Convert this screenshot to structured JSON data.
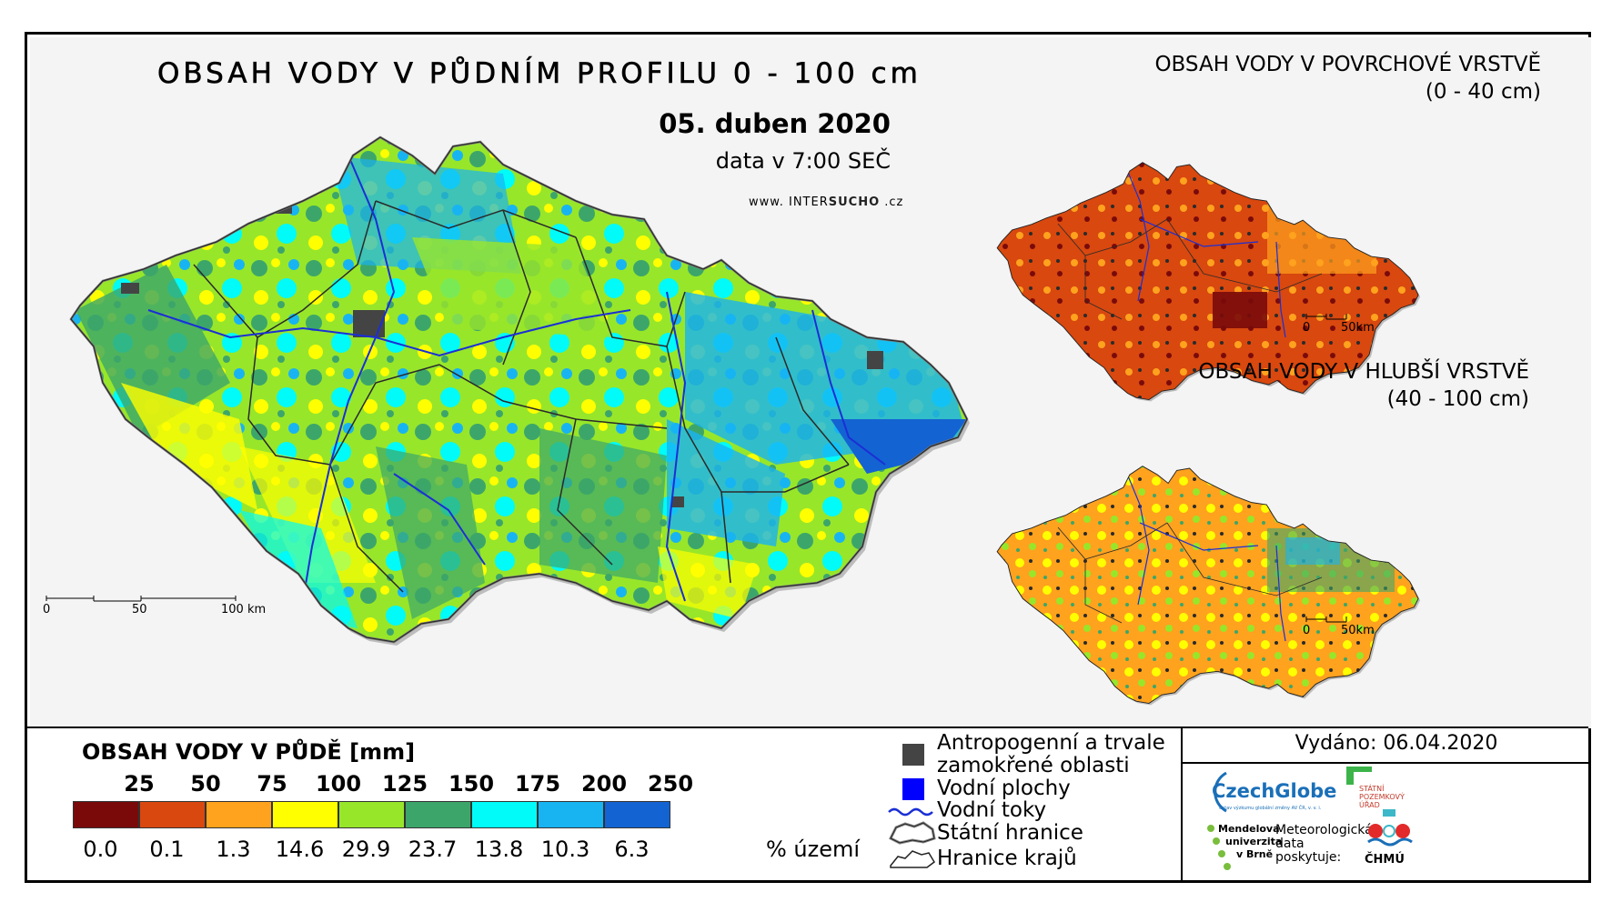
{
  "main_map": {
    "title": "OBSAH VODY V PŮDNÍM PROFILU 0 - 100 cm",
    "date": "05. duben 2020",
    "time_note": "data v 7:00 SEČ",
    "website_prefix": "www.",
    "website_brand_a": "INTER",
    "website_brand_b": "SUCHO",
    "website_suffix": ".cz",
    "scale": {
      "labels": [
        "0",
        "50",
        "100 km"
      ]
    }
  },
  "inset_surface": {
    "title_line1": "OBSAH VODY V POVRCHOVÉ VRSTVĚ",
    "title_line2": "(0 - 40 cm)",
    "scale": {
      "labels": [
        "0",
        "50km"
      ]
    }
  },
  "inset_deep": {
    "title_line1": "OBSAH VODY V HLUBŠÍ VRSTVĚ",
    "title_line2": "(40 - 100 cm)",
    "scale": {
      "labels": [
        "0",
        "50km"
      ]
    }
  },
  "legend": {
    "title": "OBSAH VODY V PŮDĚ [mm]",
    "thresholds": [
      "25",
      "50",
      "75",
      "100",
      "125",
      "150",
      "175",
      "200",
      "250"
    ],
    "classes": [
      {
        "color": "#7a0a0a",
        "percent": "0.0"
      },
      {
        "color": "#d8480f",
        "percent": "0.1"
      },
      {
        "color": "#ffa21e",
        "percent": "1.3"
      },
      {
        "color": "#ffff00",
        "percent": "14.6"
      },
      {
        "color": "#98e62a",
        "percent": "29.9"
      },
      {
        "color": "#3ca66a",
        "percent": "23.7"
      },
      {
        "color": "#00fbf8",
        "percent": "13.8"
      },
      {
        "color": "#18b4f2",
        "percent": "10.3"
      },
      {
        "color": "#1463d2",
        "percent": "6.3"
      }
    ],
    "percent_label": "% území"
  },
  "symbols": {
    "anthropogenic_line1": "Antropogenní a trvale",
    "anthropogenic_line2": "zamokřené oblasti",
    "water_bodies": "Vodní plochy",
    "rivers": "Vodní toky",
    "state_border": "Státní hranice",
    "region_border": "Hranice krajů"
  },
  "issued": "Vydáno: 06.04.2020",
  "logos": {
    "czechglobe": "CzechGlobe",
    "czechglobe_sub": "Ústav výzkumu globální změny AV ČR, v. v. i.",
    "spu_line1": "STÁTNÍ",
    "spu_line2": "POZEMKOVÝ",
    "spu_line3": "ÚŘAD",
    "mendel_line1": "Mendelova",
    "mendel_line2": "univerzita",
    "mendel_line3": "v Brně",
    "meteo_line1": "Meteorologická",
    "meteo_line2": "data",
    "meteo_line3": "poskytuje:",
    "chmu": "ČHMÚ"
  },
  "colors": {
    "map_background": "#f4f4f4",
    "region_border": "#2a2a2a",
    "rivers": "#1a2fd6",
    "anthropogenic": "#444444",
    "water": "#0000ff"
  }
}
